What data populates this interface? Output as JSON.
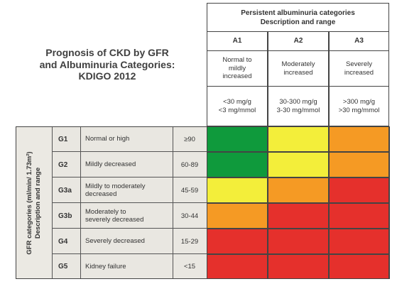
{
  "title": {
    "line1": "Prognosis of CKD by GFR",
    "line2": "and Albuminuria Categories:",
    "line3": "KDIGO 2012"
  },
  "header": {
    "top_line1": "Persistent albuminuria categories",
    "top_line2": "Description and range"
  },
  "albuminuria_columns": [
    {
      "code": "A1",
      "desc_line1": "Normal to",
      "desc_line2": "mildly",
      "desc_line3": "increased",
      "range_line1": "<30 mg/g",
      "range_line2": "<3 mg/mmol"
    },
    {
      "code": "A2",
      "desc_line1": "Moderately",
      "desc_line2": "increased",
      "desc_line3": "",
      "range_line1": "30-300 mg/g",
      "range_line2": "3-30 mg/mmol"
    },
    {
      "code": "A3",
      "desc_line1": "Severely",
      "desc_line2": "increased",
      "desc_line3": "",
      "range_line1": ">300 mg/g",
      "range_line2": ">30 mg/mmol"
    }
  ],
  "gfr_axis_label": {
    "line1": "GFR categories (ml/min/ 1.73m²)",
    "line2": "Description and range"
  },
  "gfr_rows": [
    {
      "code": "G1",
      "desc_line1": "Normal or high",
      "desc_line2": "",
      "range": "≥90",
      "risk": [
        "green",
        "yellow",
        "orange"
      ]
    },
    {
      "code": "G2",
      "desc_line1": "Mildly decreased",
      "desc_line2": "",
      "range": "60-89",
      "risk": [
        "green",
        "yellow",
        "orange"
      ]
    },
    {
      "code": "G3a",
      "desc_line1": "Mildly to moderately",
      "desc_line2": "decreased",
      "range": "45-59",
      "risk": [
        "yellow",
        "orange",
        "red"
      ]
    },
    {
      "code": "G3b",
      "desc_line1": "Moderately to",
      "desc_line2": "severely decreased",
      "range": "30-44",
      "risk": [
        "orange",
        "red",
        "red"
      ]
    },
    {
      "code": "G4",
      "desc_line1": "Severely decreased",
      "desc_line2": "",
      "range": "15-29",
      "risk": [
        "red",
        "red",
        "red"
      ]
    },
    {
      "code": "G5",
      "desc_line1": "Kidney failure",
      "desc_line2": "",
      "range": "<15",
      "risk": [
        "red",
        "red",
        "red"
      ]
    }
  ],
  "colors": {
    "green": "#0f9a3c",
    "yellow": "#f3ee3a",
    "orange": "#f59a24",
    "red": "#e5302c"
  }
}
